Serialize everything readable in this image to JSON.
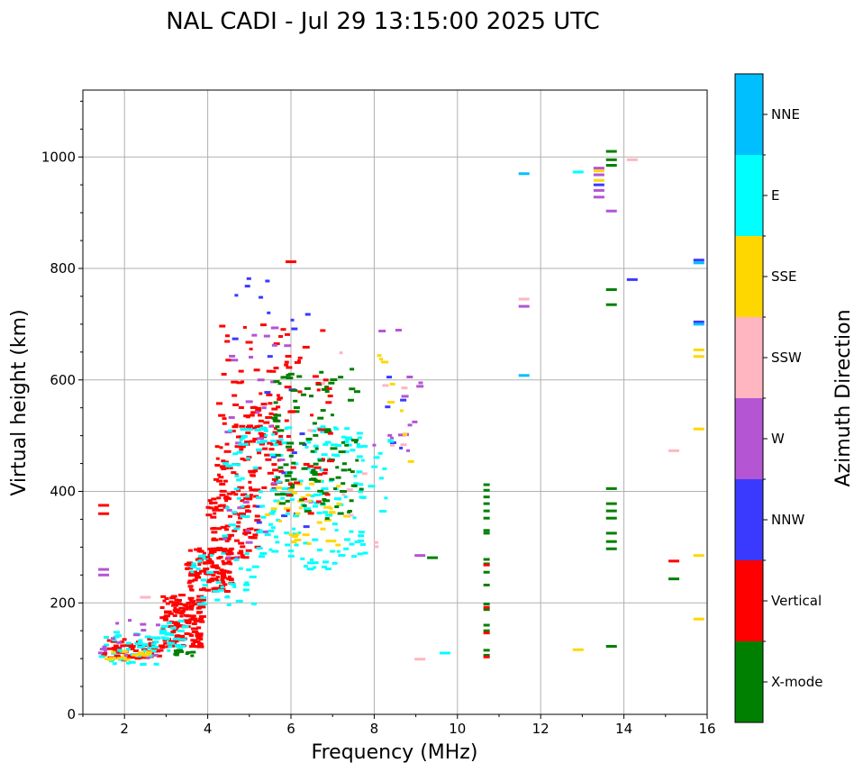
{
  "chart_data": {
    "type": "scatter",
    "title": "NAL CADI - Jul 29 13:15:00 2025 UTC",
    "xlabel": "Frequency (MHz)",
    "ylabel": "Virtual height (km)",
    "xlim": [
      1,
      16
    ],
    "ylim": [
      0,
      1120
    ],
    "xticks": [
      2,
      4,
      6,
      8,
      10,
      12,
      14,
      16
    ],
    "yticks": [
      0,
      200,
      400,
      600,
      800,
      1000
    ],
    "grid": true,
    "colorbar": {
      "label": "Azimuth Direction",
      "categories": [
        {
          "name": "X-mode",
          "color": "#008000"
        },
        {
          "name": "Vertical",
          "color": "#ff0000"
        },
        {
          "name": "NNW",
          "color": "#3a3aff"
        },
        {
          "name": "W",
          "color": "#b455d4"
        },
        {
          "name": "SSW",
          "color": "#ffb6c1"
        },
        {
          "name": "SSE",
          "color": "#ffd700"
        },
        {
          "name": "E",
          "color": "#00ffff"
        },
        {
          "name": "NNE",
          "color": "#00bfff"
        }
      ]
    },
    "clusters": [
      {
        "category": "Vertical",
        "f": [
          1.5,
          2.9
        ],
        "h": [
          97,
          135
        ],
        "n": 60
      },
      {
        "category": "E",
        "f": [
          1.4,
          2.8
        ],
        "h": [
          88,
          150
        ],
        "n": 45
      },
      {
        "category": "SSE",
        "f": [
          1.6,
          2.6
        ],
        "h": [
          98,
          115
        ],
        "n": 15
      },
      {
        "category": "W",
        "f": [
          1.4,
          2.9
        ],
        "h": [
          100,
          175
        ],
        "n": 15
      },
      {
        "category": "Vertical",
        "f": [
          2.9,
          3.9
        ],
        "h": [
          120,
          215
        ],
        "n": 130
      },
      {
        "category": "E",
        "f": [
          2.9,
          3.5
        ],
        "h": [
          110,
          170
        ],
        "n": 25
      },
      {
        "category": "X-mode",
        "f": [
          3.2,
          3.7
        ],
        "h": [
          105,
          115
        ],
        "n": 10
      },
      {
        "category": "Vertical",
        "f": [
          3.5,
          4.6
        ],
        "h": [
          220,
          300
        ],
        "n": 110
      },
      {
        "category": "E",
        "f": [
          3.6,
          5.2
        ],
        "h": [
          195,
          290
        ],
        "n": 40
      },
      {
        "category": "Vertical",
        "f": [
          4.0,
          5.2
        ],
        "h": [
          280,
          400
        ],
        "n": 100
      },
      {
        "category": "Vertical",
        "f": [
          4.2,
          5.8
        ],
        "h": [
          400,
          560
        ],
        "n": 120
      },
      {
        "category": "Vertical",
        "f": [
          4.3,
          6.2
        ],
        "h": [
          560,
          700
        ],
        "n": 30
      },
      {
        "category": "W",
        "f": [
          4.4,
          6.0
        ],
        "h": [
          280,
          700
        ],
        "n": 30
      },
      {
        "category": "NNW",
        "f": [
          4.6,
          6.5
        ],
        "h": [
          330,
          800
        ],
        "n": 25
      },
      {
        "category": "E",
        "f": [
          4.4,
          7.8
        ],
        "h": [
          260,
          520
        ],
        "n": 200
      },
      {
        "category": "SSE",
        "f": [
          5.4,
          7.4
        ],
        "h": [
          300,
          420
        ],
        "n": 40
      },
      {
        "category": "X-mode",
        "f": [
          5.6,
          7.7
        ],
        "h": [
          350,
          620
        ],
        "n": 110
      },
      {
        "category": "Vertical",
        "f": [
          5.8,
          7.0
        ],
        "h": [
          350,
          690
        ],
        "n": 40
      },
      {
        "category": "SSW",
        "f": [
          6.0,
          8.8
        ],
        "h": [
          300,
          650
        ],
        "n": 15
      },
      {
        "category": "W",
        "f": [
          7.9,
          9.2
        ],
        "h": [
          440,
          690
        ],
        "n": 14
      },
      {
        "category": "SSE",
        "f": [
          8.0,
          9.0
        ],
        "h": [
          440,
          660
        ],
        "n": 8
      },
      {
        "category": "NNW",
        "f": [
          8.3,
          8.8
        ],
        "h": [
          470,
          620
        ],
        "n": 5
      },
      {
        "category": "E",
        "f": [
          7.9,
          8.4
        ],
        "h": [
          360,
          520
        ],
        "n": 10
      }
    ],
    "points": [
      {
        "c": "Vertical",
        "f": 1.5,
        "h": 375
      },
      {
        "c": "Vertical",
        "f": 1.5,
        "h": 360
      },
      {
        "c": "W",
        "f": 1.5,
        "h": 260
      },
      {
        "c": "W",
        "f": 1.5,
        "h": 250
      },
      {
        "c": "SSW",
        "f": 2.5,
        "h": 210
      },
      {
        "c": "Vertical",
        "f": 6.0,
        "h": 812
      },
      {
        "c": "W",
        "f": 9.1,
        "h": 285
      },
      {
        "c": "X-mode",
        "f": 9.4,
        "h": 281
      },
      {
        "c": "SSW",
        "f": 9.1,
        "h": 99
      },
      {
        "c": "E",
        "f": 9.7,
        "h": 110
      },
      {
        "c": "X-mode",
        "f": 10.7,
        "h": 412
      },
      {
        "c": "X-mode",
        "f": 10.7,
        "h": 402
      },
      {
        "c": "X-mode",
        "f": 10.7,
        "h": 390
      },
      {
        "c": "X-mode",
        "f": 10.7,
        "h": 378
      },
      {
        "c": "X-mode",
        "f": 10.7,
        "h": 365
      },
      {
        "c": "X-mode",
        "f": 10.7,
        "h": 352
      },
      {
        "c": "X-mode",
        "f": 10.7,
        "h": 330
      },
      {
        "c": "X-mode",
        "f": 10.7,
        "h": 325
      },
      {
        "c": "X-mode",
        "f": 10.7,
        "h": 278
      },
      {
        "c": "X-mode",
        "f": 10.7,
        "h": 270
      },
      {
        "c": "X-mode",
        "f": 10.7,
        "h": 255
      },
      {
        "c": "X-mode",
        "f": 10.7,
        "h": 232
      },
      {
        "c": "X-mode",
        "f": 10.7,
        "h": 198
      },
      {
        "c": "X-mode",
        "f": 10.7,
        "h": 188
      },
      {
        "c": "X-mode",
        "f": 10.7,
        "h": 160
      },
      {
        "c": "X-mode",
        "f": 10.7,
        "h": 150
      },
      {
        "c": "X-mode",
        "f": 10.7,
        "h": 115
      },
      {
        "c": "X-mode",
        "f": 10.7,
        "h": 106
      },
      {
        "c": "Vertical",
        "f": 10.7,
        "h": 268
      },
      {
        "c": "Vertical",
        "f": 10.7,
        "h": 192
      },
      {
        "c": "Vertical",
        "f": 10.7,
        "h": 146
      },
      {
        "c": "Vertical",
        "f": 10.7,
        "h": 103
      },
      {
        "c": "NNE",
        "f": 11.6,
        "h": 970
      },
      {
        "c": "SSW",
        "f": 11.6,
        "h": 745
      },
      {
        "c": "W",
        "f": 11.6,
        "h": 732
      },
      {
        "c": "NNE",
        "f": 11.6,
        "h": 608
      },
      {
        "c": "E",
        "f": 12.9,
        "h": 973
      },
      {
        "c": "SSE",
        "f": 12.9,
        "h": 116
      },
      {
        "c": "W",
        "f": 13.4,
        "h": 980
      },
      {
        "c": "SSE",
        "f": 13.4,
        "h": 975
      },
      {
        "c": "W",
        "f": 13.4,
        "h": 968
      },
      {
        "c": "SSE",
        "f": 13.4,
        "h": 958
      },
      {
        "c": "NNW",
        "f": 13.4,
        "h": 950
      },
      {
        "c": "W",
        "f": 13.4,
        "h": 940
      },
      {
        "c": "W",
        "f": 13.4,
        "h": 928
      },
      {
        "c": "X-mode",
        "f": 13.7,
        "h": 1010
      },
      {
        "c": "X-mode",
        "f": 13.7,
        "h": 995
      },
      {
        "c": "X-mode",
        "f": 13.7,
        "h": 985
      },
      {
        "c": "W",
        "f": 13.7,
        "h": 903
      },
      {
        "c": "X-mode",
        "f": 13.7,
        "h": 762
      },
      {
        "c": "X-mode",
        "f": 13.7,
        "h": 735
      },
      {
        "c": "X-mode",
        "f": 13.7,
        "h": 405
      },
      {
        "c": "X-mode",
        "f": 13.7,
        "h": 378
      },
      {
        "c": "X-mode",
        "f": 13.7,
        "h": 365
      },
      {
        "c": "X-mode",
        "f": 13.7,
        "h": 352
      },
      {
        "c": "X-mode",
        "f": 13.7,
        "h": 325
      },
      {
        "c": "X-mode",
        "f": 13.7,
        "h": 310
      },
      {
        "c": "X-mode",
        "f": 13.7,
        "h": 297
      },
      {
        "c": "X-mode",
        "f": 13.7,
        "h": 122
      },
      {
        "c": "SSW",
        "f": 14.2,
        "h": 995
      },
      {
        "c": "NNW",
        "f": 14.2,
        "h": 780
      },
      {
        "c": "SSW",
        "f": 15.2,
        "h": 473
      },
      {
        "c": "Vertical",
        "f": 15.2,
        "h": 275
      },
      {
        "c": "X-mode",
        "f": 15.2,
        "h": 243
      },
      {
        "c": "NNW",
        "f": 15.8,
        "h": 815
      },
      {
        "c": "NNE",
        "f": 15.8,
        "h": 810
      },
      {
        "c": "NNW",
        "f": 15.8,
        "h": 704
      },
      {
        "c": "NNE",
        "f": 15.8,
        "h": 700
      },
      {
        "c": "SSE",
        "f": 15.8,
        "h": 654
      },
      {
        "c": "SSE",
        "f": 15.8,
        "h": 642
      },
      {
        "c": "SSE",
        "f": 15.8,
        "h": 512
      },
      {
        "c": "SSE",
        "f": 15.8,
        "h": 285
      },
      {
        "c": "SSE",
        "f": 15.8,
        "h": 171
      }
    ]
  }
}
